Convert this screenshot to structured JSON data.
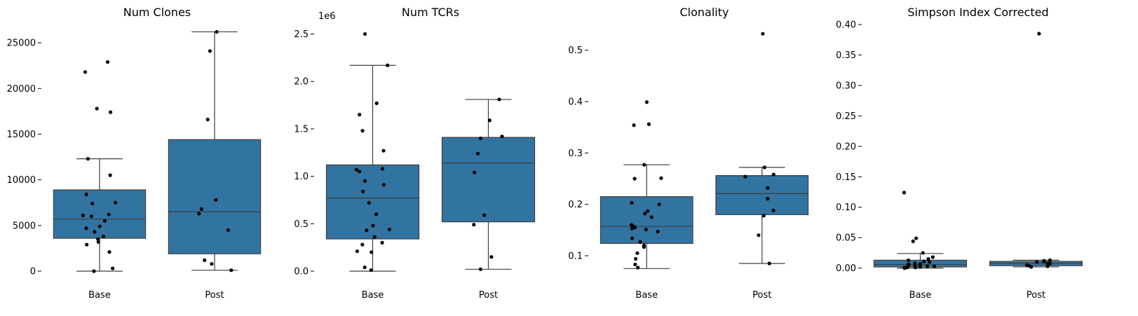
{
  "colors": {
    "box": "#3274a1",
    "line": "#3d3d3d",
    "point": "#000000"
  },
  "chart_data": [
    {
      "type": "box",
      "title": "Num Clones",
      "categories": [
        "Base",
        "Post"
      ],
      "ylim": [
        0,
        27000
      ],
      "yticks": [
        0,
        5000,
        10000,
        15000,
        20000,
        25000
      ],
      "ytick_labels": [
        "0",
        "5000",
        "10000",
        "15000",
        "20000",
        "25000"
      ],
      "offset_text": "",
      "boxes": [
        {
          "category": "Base",
          "whislo": 0,
          "q1": 3600,
          "med": 5700,
          "q3": 8900,
          "whishi": 12300
        },
        {
          "category": "Post",
          "whislo": 100,
          "q1": 1900,
          "med": 6500,
          "q3": 14400,
          "whishi": 26200
        }
      ],
      "points": [
        [
          22900,
          21800,
          17800,
          17400,
          12300,
          10500,
          8400,
          7500,
          7400,
          6200,
          6100,
          6000,
          5500,
          4900,
          4700,
          4300,
          3800,
          3500,
          3200,
          2900,
          2100,
          300,
          0
        ],
        [
          26200,
          24100,
          16600,
          7800,
          6800,
          6300,
          4500,
          1200,
          800,
          100
        ]
      ]
    },
    {
      "type": "box",
      "title": "Num TCRs",
      "categories": [
        "Base",
        "Post"
      ],
      "ylim": [
        0,
        2600000
      ],
      "yticks": [
        0,
        500000,
        1000000,
        1500000,
        2000000,
        2500000
      ],
      "ytick_labels": [
        "0.0",
        "0.5",
        "1.0",
        "1.5",
        "2.0",
        "2.5"
      ],
      "offset_text": "1e6",
      "boxes": [
        {
          "category": "Base",
          "whislo": 0,
          "q1": 340000,
          "med": 770000,
          "q3": 1120000,
          "whishi": 2170000
        },
        {
          "category": "Post",
          "whislo": 20000,
          "q1": 520000,
          "med": 1140000,
          "q3": 1410000,
          "whishi": 1810000
        }
      ],
      "points": [
        [
          2500000,
          2170000,
          1770000,
          1650000,
          1480000,
          1270000,
          1080000,
          1070000,
          1050000,
          950000,
          910000,
          840000,
          720000,
          600000,
          480000,
          430000,
          440000,
          360000,
          280000,
          300000,
          200000,
          210000,
          40000,
          10000
        ],
        [
          1810000,
          1590000,
          1420000,
          1400000,
          1240000,
          1040000,
          590000,
          490000,
          150000,
          20000
        ]
      ]
    },
    {
      "type": "box",
      "title": "Clonality",
      "categories": [
        "Base",
        "Post"
      ],
      "ylim": [
        0.07,
        0.55
      ],
      "yticks": [
        0.1,
        0.2,
        0.3,
        0.4,
        0.5
      ],
      "ytick_labels": [
        "0.1",
        "0.2",
        "0.3",
        "0.4",
        "0.5"
      ],
      "offset_text": "",
      "boxes": [
        {
          "category": "Base",
          "whislo": 0.075,
          "q1": 0.124,
          "med": 0.157,
          "q3": 0.215,
          "whishi": 0.277
        },
        {
          "category": "Post",
          "whislo": 0.085,
          "q1": 0.18,
          "med": 0.221,
          "q3": 0.256,
          "whishi": 0.272
        }
      ],
      "points": [
        [
          0.399,
          0.356,
          0.354,
          0.277,
          0.251,
          0.25,
          0.203,
          0.2,
          0.187,
          0.182,
          0.175,
          0.16,
          0.157,
          0.155,
          0.153,
          0.151,
          0.147,
          0.134,
          0.127,
          0.12,
          0.117,
          0.105,
          0.094,
          0.083,
          0.077
        ],
        [
          0.532,
          0.272,
          0.258,
          0.254,
          0.232,
          0.211,
          0.188,
          0.178,
          0.14,
          0.085
        ]
      ]
    },
    {
      "type": "box",
      "title": "Simpson Index Corrected",
      "categories": [
        "Base",
        "Post"
      ],
      "ylim": [
        -0.005,
        0.4
      ],
      "yticks": [
        0,
        0.05,
        0.1,
        0.15,
        0.2,
        0.25,
        0.3,
        0.35,
        0.4
      ],
      "ytick_labels": [
        "0.00",
        "0.05",
        "0.10",
        "0.15",
        "0.20",
        "0.25",
        "0.30",
        "0.35",
        "0.40"
      ],
      "offset_text": "",
      "boxes": [
        {
          "category": "Base",
          "whislo": 0,
          "q1": 0.002,
          "med": 0.006,
          "q3": 0.013,
          "whishi": 0.024
        },
        {
          "category": "Post",
          "whislo": 0.002,
          "q1": 0.004,
          "med": 0.008,
          "q3": 0.011,
          "whishi": 0.013
        }
      ],
      "points": [
        [
          0.124,
          0.049,
          0.044,
          0.025,
          0.018,
          0.015,
          0.013,
          0.011,
          0.01,
          0.008,
          0.007,
          0.006,
          0.006,
          0.005,
          0.004,
          0.004,
          0.003,
          0.003,
          0.002,
          0.002,
          0.001,
          0.001,
          0.001,
          0
        ],
        [
          0.385,
          0.013,
          0.012,
          0.011,
          0.01,
          0.008,
          0.007,
          0.005,
          0.004,
          0.003,
          0.002
        ]
      ]
    }
  ]
}
